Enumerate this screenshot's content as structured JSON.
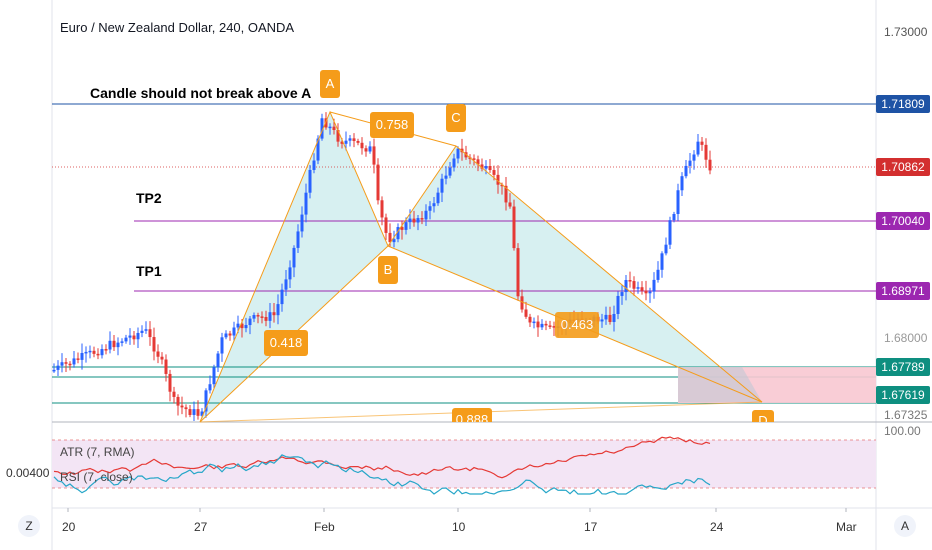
{
  "header": {
    "symbol_title": "Euro / New Zealand Dollar, 240, OANDA"
  },
  "annotations": {
    "note": "Candle should not break above A",
    "tp2": "TP2",
    "tp1": "TP1"
  },
  "pattern": {
    "points": [
      {
        "label": "A",
        "price": 1.7135
      },
      {
        "label": "B",
        "price": 1.6945
      },
      {
        "label": "C",
        "price": 1.709
      },
      {
        "label": "D",
        "price": 1.6745
      }
    ],
    "ratios": [
      {
        "label": "0.758"
      },
      {
        "label": "0.418"
      },
      {
        "label": "0.888"
      },
      {
        "label": "0.463"
      }
    ]
  },
  "price_axis": {
    "visible_label": "1.73000",
    "tags": [
      {
        "label": "1.71809",
        "value": 1.71809,
        "color": "#1e53a5"
      },
      {
        "label": "1.70862",
        "value": 1.70862,
        "color": "#d32f2f"
      },
      {
        "label": "1.70040",
        "value": 1.7004,
        "color": "#9c27b0"
      },
      {
        "label": "1.68971",
        "value": 1.68971,
        "color": "#9c27b0"
      },
      {
        "label": "1.67789",
        "value": 1.67789,
        "color": "#0e8f80"
      },
      {
        "label": "1.67619",
        "value": 1.67619,
        "color": "#0e8f80"
      }
    ],
    "partial_labels": [
      "1.68000",
      "1.67325"
    ]
  },
  "indicator": {
    "atr_legend": "ATR (7, RMA)",
    "rsi_legend": "RSI (7, close)",
    "axis_value": "0.00400",
    "right_value": "100.00"
  },
  "time_axis": {
    "labels": [
      "20",
      "27",
      "Feb",
      "10",
      "17",
      "24",
      "Mar"
    ]
  },
  "controls": {
    "zoom_button": "Z",
    "auto_button": "A"
  },
  "colors": {
    "up_candle": "#2962ff",
    "down_candle": "#e53935",
    "pattern_line": "#f59c1a",
    "pattern_fill": "#d3eef0",
    "tp_line": "#9c27b0",
    "resistance_line": "#1e53a5",
    "current_line": "#d32f2f",
    "zone_line": "#0e8f80",
    "zone_fill": "#f8c8d2",
    "rsi_bg": "#f3e5f5"
  }
}
